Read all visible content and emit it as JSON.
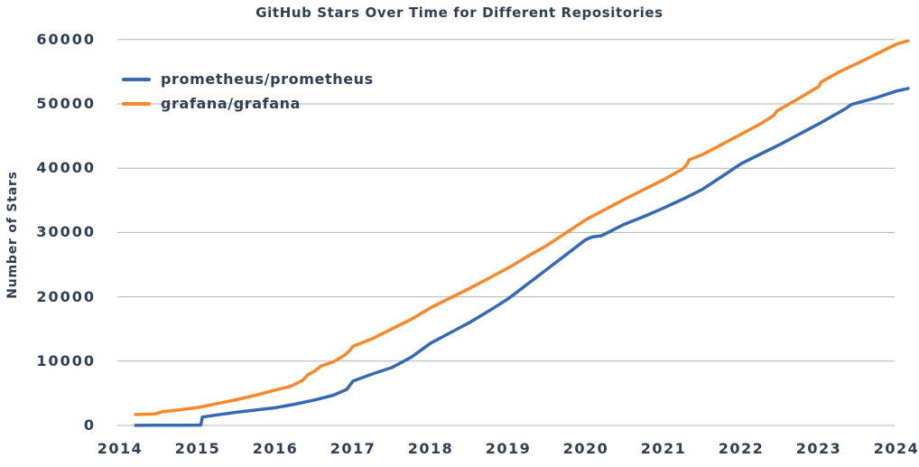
{
  "colors": {
    "text": "#2e3e54",
    "grid": "#b3b3b3",
    "prometheus_line": "#3569b4",
    "grafana_line": "#f8882c",
    "background": "#ffffff"
  },
  "chart_data": {
    "type": "line",
    "title": "GitHub Stars Over Time for Different Repositories",
    "xlabel": "",
    "ylabel": "Number of Stars",
    "xlim": [
      2014,
      2024.2
    ],
    "ylim": [
      0,
      60000
    ],
    "x_ticks": [
      2014,
      2015,
      2016,
      2017,
      2018,
      2019,
      2020,
      2021,
      2022,
      2023,
      2024
    ],
    "y_ticks": [
      0,
      10000,
      20000,
      30000,
      40000,
      50000,
      60000
    ],
    "grid": "horizontal-only",
    "legend_position": "upper-left",
    "series": [
      {
        "name": "prometheus/prometheus",
        "color": "#3569b4",
        "points": [
          [
            2014.2,
            20
          ],
          [
            2014.5,
            30
          ],
          [
            2014.75,
            40
          ],
          [
            2015.0,
            50
          ],
          [
            2015.04,
            60
          ],
          [
            2015.06,
            1300
          ],
          [
            2015.25,
            1650
          ],
          [
            2015.5,
            2050
          ],
          [
            2015.75,
            2400
          ],
          [
            2016.0,
            2750
          ],
          [
            2016.25,
            3300
          ],
          [
            2016.5,
            3950
          ],
          [
            2016.75,
            4700
          ],
          [
            2016.92,
            5600
          ],
          [
            2017.0,
            6900
          ],
          [
            2017.25,
            8000
          ],
          [
            2017.5,
            9000
          ],
          [
            2017.75,
            10600
          ],
          [
            2018.0,
            12800
          ],
          [
            2018.25,
            14400
          ],
          [
            2018.5,
            16000
          ],
          [
            2018.75,
            17800
          ],
          [
            2019.0,
            19700
          ],
          [
            2019.25,
            22000
          ],
          [
            2019.5,
            24300
          ],
          [
            2019.75,
            26600
          ],
          [
            2020.0,
            28900
          ],
          [
            2020.08,
            29300
          ],
          [
            2020.2,
            29500
          ],
          [
            2020.5,
            31300
          ],
          [
            2020.75,
            32500
          ],
          [
            2021.0,
            33800
          ],
          [
            2021.25,
            35200
          ],
          [
            2021.5,
            36700
          ],
          [
            2021.75,
            38700
          ],
          [
            2022.0,
            40700
          ],
          [
            2022.25,
            42200
          ],
          [
            2022.5,
            43700
          ],
          [
            2022.75,
            45300
          ],
          [
            2023.0,
            46900
          ],
          [
            2023.25,
            48600
          ],
          [
            2023.35,
            49300
          ],
          [
            2023.42,
            49900
          ],
          [
            2023.75,
            51000
          ],
          [
            2024.0,
            52000
          ],
          [
            2024.15,
            52400
          ]
        ]
      },
      {
        "name": "grafana/grafana",
        "color": "#f8882c",
        "points": [
          [
            2014.2,
            1700
          ],
          [
            2014.45,
            1800
          ],
          [
            2014.55,
            2150
          ],
          [
            2014.75,
            2400
          ],
          [
            2015.0,
            2800
          ],
          [
            2015.25,
            3400
          ],
          [
            2015.5,
            4000
          ],
          [
            2015.75,
            4700
          ],
          [
            2016.0,
            5500
          ],
          [
            2016.2,
            6100
          ],
          [
            2016.35,
            7000
          ],
          [
            2016.42,
            7900
          ],
          [
            2016.5,
            8400
          ],
          [
            2016.6,
            9300
          ],
          [
            2016.75,
            9900
          ],
          [
            2016.9,
            11000
          ],
          [
            2016.97,
            11800
          ],
          [
            2017.0,
            12300
          ],
          [
            2017.25,
            13500
          ],
          [
            2017.5,
            15000
          ],
          [
            2017.75,
            16500
          ],
          [
            2018.0,
            18300
          ],
          [
            2018.25,
            19800
          ],
          [
            2018.5,
            21300
          ],
          [
            2018.75,
            22900
          ],
          [
            2019.0,
            24500
          ],
          [
            2019.25,
            26300
          ],
          [
            2019.5,
            28000
          ],
          [
            2019.75,
            30000
          ],
          [
            2020.0,
            32000
          ],
          [
            2020.25,
            33600
          ],
          [
            2020.5,
            35200
          ],
          [
            2020.75,
            36700
          ],
          [
            2021.0,
            38200
          ],
          [
            2021.25,
            39900
          ],
          [
            2021.3,
            40600
          ],
          [
            2021.33,
            41300
          ],
          [
            2021.5,
            42100
          ],
          [
            2021.75,
            43700
          ],
          [
            2022.0,
            45300
          ],
          [
            2022.25,
            46900
          ],
          [
            2022.42,
            48200
          ],
          [
            2022.46,
            48900
          ],
          [
            2022.75,
            50900
          ],
          [
            2023.0,
            52700
          ],
          [
            2023.03,
            53400
          ],
          [
            2023.25,
            54900
          ],
          [
            2023.5,
            56300
          ],
          [
            2023.75,
            57800
          ],
          [
            2024.0,
            59300
          ],
          [
            2024.15,
            59800
          ]
        ]
      }
    ]
  }
}
